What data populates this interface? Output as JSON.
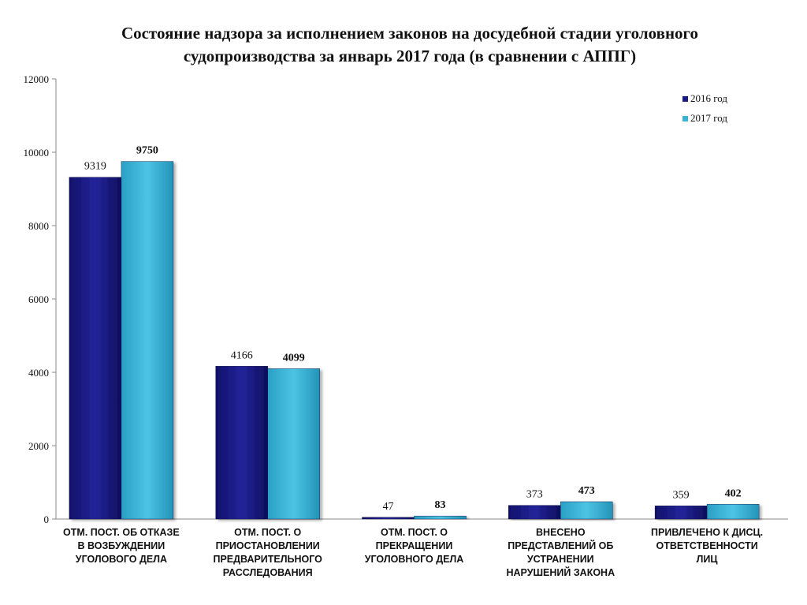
{
  "chart_data": {
    "type": "bar",
    "title_lines": [
      "Состояние надзора за исполнением законов на досудебной стадии уголовного",
      "судопроизводства за январь 2017 года (в сравнении с АППГ)"
    ],
    "categories": [
      [
        "ОТМ. ПОСТ. ОБ ОТКАЗЕ",
        "В ВОЗБУЖДЕНИИ",
        "УГОЛОВОГО ДЕЛА"
      ],
      [
        "ОТМ. ПОСТ. О",
        "ПРИОСТАНОВЛЕНИИ",
        "ПРЕДВАРИТЕЛЬНОГО",
        "РАССЛЕДОВАНИЯ"
      ],
      [
        "ОТМ. ПОСТ. О",
        "ПРЕКРАЩЕНИИ",
        "УГОЛОВНОГО ДЕЛА"
      ],
      [
        "ВНЕСЕНО",
        "ПРЕДСТАВЛЕНИЙ ОБ",
        "УСТРАНЕНИИ",
        "НАРУШЕНИЙ ЗАКОНА"
      ],
      [
        "ПРИВЛЕЧЕНО К ДИСЦ.",
        "ОТВЕТСТВЕННОСТИ",
        "ЛИЦ"
      ]
    ],
    "series": [
      {
        "name": "2016 год",
        "values": [
          9319,
          4166,
          47,
          373,
          359
        ],
        "color": "#1a1a80"
      },
      {
        "name": "2017 год",
        "values": [
          9750,
          4099,
          83,
          473,
          402
        ],
        "color": "#3ab3d6"
      }
    ],
    "ylim": [
      0,
      12000
    ],
    "yticks": [
      0,
      2000,
      4000,
      6000,
      8000,
      10000,
      12000
    ],
    "grid": false,
    "legend_position": "top-right"
  }
}
